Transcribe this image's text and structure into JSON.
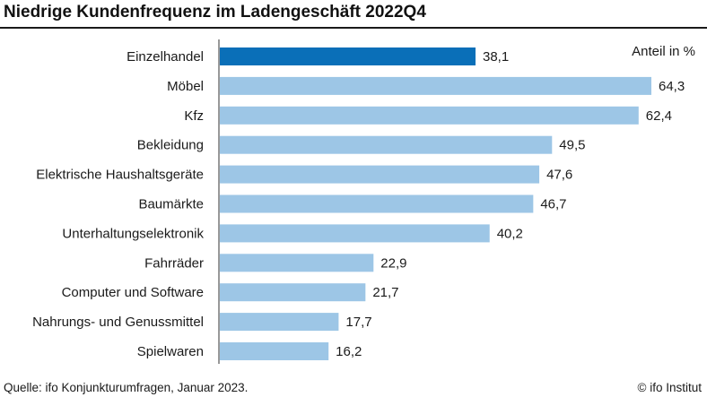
{
  "chart_data": {
    "type": "bar",
    "orientation": "horizontal",
    "title": "Niedrige Kundenfrequenz im Ladengeschäft 2022Q4",
    "unit_label": "Anteil in %",
    "categories": [
      "Einzelhandel",
      "Möbel",
      "Kfz",
      "Bekleidung",
      "Elektrische Haushaltsgeräte",
      "Baumärkte",
      "Unterhaltungselektronik",
      "Fahrräder",
      "Computer und Software",
      "Nahrungs- und Genussmittel",
      "Spielwaren"
    ],
    "values": [
      38.1,
      64.3,
      62.4,
      49.5,
      47.6,
      46.7,
      40.2,
      22.9,
      21.7,
      17.7,
      16.2
    ],
    "value_labels": [
      "38,1",
      "64,3",
      "62,4",
      "49,5",
      "47,6",
      "46,7",
      "40,2",
      "22,9",
      "21,7",
      "17,7",
      "16,2"
    ],
    "highlight_index": 0,
    "colors": {
      "highlight": "#0a6fb8",
      "default": "#9dc6e6",
      "axis": "#333333"
    },
    "xlim": [
      0,
      65
    ],
    "grid": false,
    "legend": "none"
  },
  "footer": {
    "source": "Quelle: ifo Konjunkturumfragen, Januar 2023.",
    "credit": "© ifo Institut"
  }
}
